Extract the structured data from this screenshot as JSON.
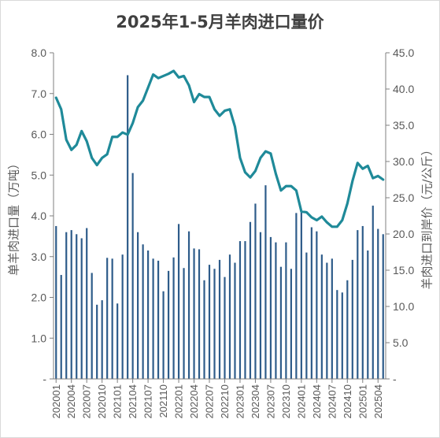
{
  "title": "2025年1-5月羊肉进口量价",
  "chart_data": {
    "type": "bar+line",
    "title": "2025年1-5月羊肉进口量价",
    "ylabel_left": "单羊肉进口量（万吨）",
    "ylabel_right": "羊肉进口到岸价（元/公斤）",
    "ylim_left": [
      0,
      8
    ],
    "ylim_right": [
      0,
      45
    ],
    "yticks_left": [
      "-",
      "1.0",
      "2.0",
      "3.0",
      "4.0",
      "5.0",
      "6.0",
      "7.0",
      "8.0"
    ],
    "yticks_right": [
      "-",
      "5.0",
      "10.0",
      "15.0",
      "20.0",
      "25.0",
      "30.0",
      "35.0",
      "40.0",
      "45.0"
    ],
    "grid": false,
    "x_tick_labels": [
      "202001",
      "202004",
      "202007",
      "202010",
      "202101",
      "202104",
      "202107",
      "202110",
      "202201",
      "202204",
      "202207",
      "202210",
      "202301",
      "202304",
      "202307",
      "202310",
      "202401",
      "202404",
      "202407",
      "202410",
      "202501",
      "202504"
    ],
    "months": [
      "202001",
      "202002",
      "202003",
      "202004",
      "202005",
      "202006",
      "202007",
      "202008",
      "202009",
      "202010",
      "202011",
      "202012",
      "202101",
      "202102",
      "202103",
      "202104",
      "202105",
      "202106",
      "202107",
      "202108",
      "202109",
      "202110",
      "202111",
      "202112",
      "202201",
      "202202",
      "202203",
      "202204",
      "202205",
      "202206",
      "202207",
      "202208",
      "202209",
      "202210",
      "202211",
      "202212",
      "202301",
      "202302",
      "202303",
      "202304",
      "202305",
      "202306",
      "202307",
      "202308",
      "202309",
      "202310",
      "202311",
      "202312",
      "202401",
      "202402",
      "202403",
      "202404",
      "202405",
      "202406",
      "202407",
      "202408",
      "202409",
      "202410",
      "202411",
      "202412",
      "202501",
      "202502",
      "202503",
      "202504",
      "202505"
    ],
    "series": [
      {
        "kind": "bar",
        "axis": "left",
        "color": "#2e5c8a",
        "values": [
          3.75,
          2.55,
          3.6,
          3.65,
          3.55,
          3.45,
          3.7,
          2.6,
          1.82,
          1.93,
          2.97,
          2.95,
          1.85,
          3.05,
          7.45,
          5.05,
          3.6,
          3.3,
          3.15,
          2.95,
          2.9,
          2.15,
          2.65,
          2.98,
          3.8,
          2.72,
          3.62,
          3.2,
          3.18,
          2.42,
          2.8,
          2.7,
          2.92,
          2.5,
          3.05,
          2.85,
          3.38,
          3.38,
          3.85,
          4.3,
          3.6,
          4.75,
          3.48,
          3.35,
          2.75,
          3.35,
          2.7,
          4.07,
          4.08,
          3.1,
          3.72,
          3.62,
          3.05,
          2.85,
          2.95,
          2.18,
          2.12,
          2.42,
          2.92,
          3.65,
          3.75,
          3.15,
          4.25,
          3.68,
          3.55
        ]
      },
      {
        "kind": "line",
        "axis": "right",
        "color": "#1f8a99",
        "values": [
          38.8,
          37.2,
          33.0,
          31.6,
          32.3,
          34.2,
          32.8,
          30.5,
          29.5,
          30.5,
          31.0,
          33.4,
          33.4,
          34.0,
          33.7,
          35.3,
          37.5,
          38.4,
          40.2,
          42.0,
          41.5,
          41.8,
          42.1,
          42.5,
          41.6,
          41.8,
          40.5,
          38.2,
          39.3,
          38.9,
          38.9,
          37.2,
          36.3,
          37.0,
          37.2,
          34.8,
          30.5,
          28.5,
          27.8,
          28.7,
          30.5,
          31.4,
          31.1,
          28.3,
          26.0,
          26.6,
          26.6,
          26.0,
          23.1,
          23.0,
          22.3,
          21.9,
          22.4,
          21.6,
          21.0,
          21.0,
          21.9,
          24.2,
          27.3,
          29.8,
          29.0,
          29.4,
          27.7,
          28.0,
          27.5
        ]
      }
    ]
  }
}
